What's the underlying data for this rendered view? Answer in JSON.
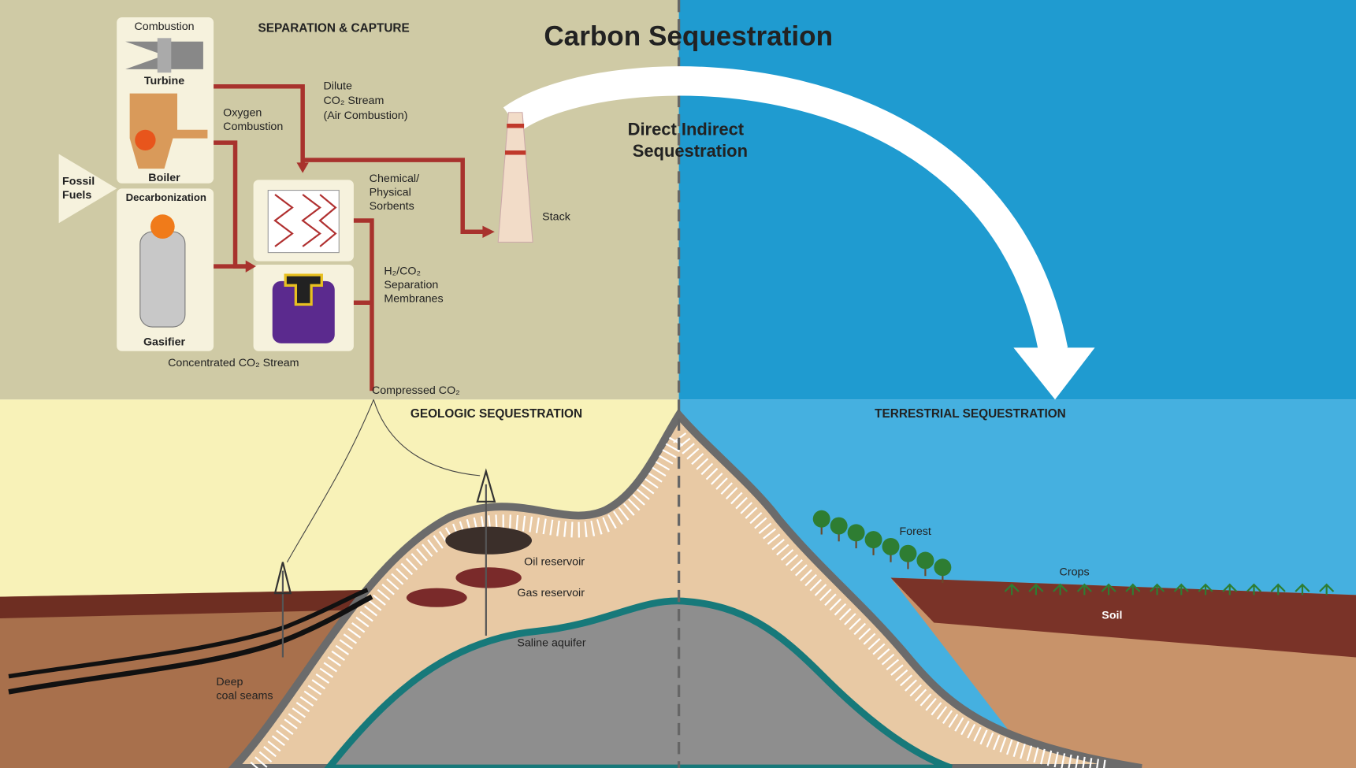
{
  "title": "Carbon Sequestration",
  "separation_capture": {
    "heading": "SEPARATION & CAPTURE",
    "combustion": "Combustion",
    "turbine": "Turbine",
    "boiler": "Boiler",
    "fossil_fuels": [
      "Fossil",
      "Fuels"
    ],
    "decarbonization": "Decarbonization",
    "gasifier": "Gasifier",
    "oxygen_combustion": [
      "Oxygen",
      "Combustion"
    ],
    "dilute_stream": [
      "Dilute",
      "CO₂ Stream",
      "(Air Combustion)"
    ],
    "sorbents": [
      "Chemical/",
      "Physical",
      "Sorbents"
    ],
    "membranes": [
      "H₂/CO₂",
      "Separation",
      "Membranes"
    ],
    "concentrated_stream": "Concentrated CO₂ Stream",
    "compressed": "Compressed CO₂",
    "stack": "Stack"
  },
  "sequestration_split": [
    "Direct  Indirect",
    "Sequestration"
  ],
  "geologic": {
    "heading": "GEOLOGIC  SEQUESTRATION",
    "oil": "Oil reservoir",
    "gas": "Gas reservoir",
    "saline": "Saline aquifer",
    "coal": [
      "Deep",
      "coal seams"
    ]
  },
  "terrestrial": {
    "heading": "TERRESTRIAL  SEQUESTRATION",
    "forest": "Forest",
    "crops": "Crops",
    "soil": "Soil"
  }
}
